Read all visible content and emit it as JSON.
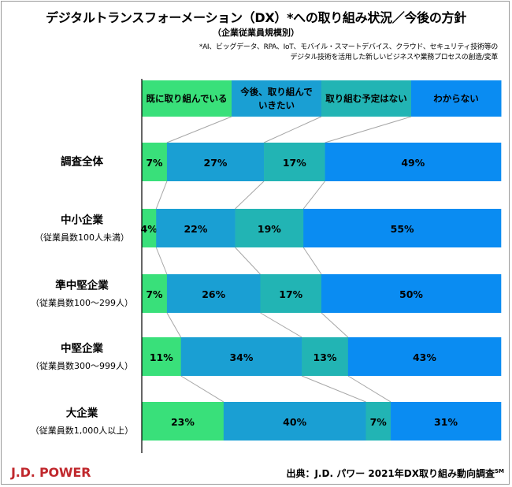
{
  "title": "デジタルトランスフォーメーション（DX）*への取り組み状況／今後の方針",
  "subtitle": "（企業従業員規模別）",
  "footnote": [
    "*AI、ビッグデータ、RPA、IoT、モバイル・スマートデバイス、クラウド、セキュリティ技術等の",
    "デジタル技術を活用した新しいビジネスや業務プロセスの創造/変革"
  ],
  "logo": "J.D. POWER",
  "source": "出典：J.D. パワー 2021年DX取り組み動向調査",
  "source_mark": "SM",
  "colors": {
    "s1": "#39e07a",
    "s2": "#1a9fd3",
    "s3": "#22b4b4",
    "s4": "#0a8cf2",
    "axis": "#000000",
    "connector": "#a6a6a6"
  },
  "chart_data": {
    "type": "bar",
    "orientation": "horizontal",
    "stacked": true,
    "percent": true,
    "legend_position": "top",
    "series": [
      {
        "name": "既に取り組んでいる",
        "values": [
          7,
          4,
          7,
          11,
          23
        ]
      },
      {
        "name": "今後、取り組んでいきたい",
        "values": [
          27,
          22,
          26,
          34,
          40
        ]
      },
      {
        "name": "取り組む予定はない",
        "values": [
          17,
          19,
          17,
          13,
          7
        ]
      },
      {
        "name": "わからない",
        "values": [
          49,
          55,
          50,
          43,
          31
        ]
      }
    ],
    "categories": [
      {
        "label": "調査全体",
        "sub": ""
      },
      {
        "label": "中小企業",
        "sub": "（従業員数100人未満）"
      },
      {
        "label": "準中堅企業",
        "sub": "（従業員数100～299人）"
      },
      {
        "label": "中堅企業",
        "sub": "（従業員数300～999人）"
      },
      {
        "label": "大企業",
        "sub": "（従業員数1,000人以上）"
      }
    ],
    "legend_lines": [
      [
        "既に取り組んでいる"
      ],
      [
        "今後、取り組んで",
        "いきたい"
      ],
      [
        "取り組む予定はない"
      ],
      [
        "わからない"
      ]
    ],
    "value_suffix": "%"
  }
}
